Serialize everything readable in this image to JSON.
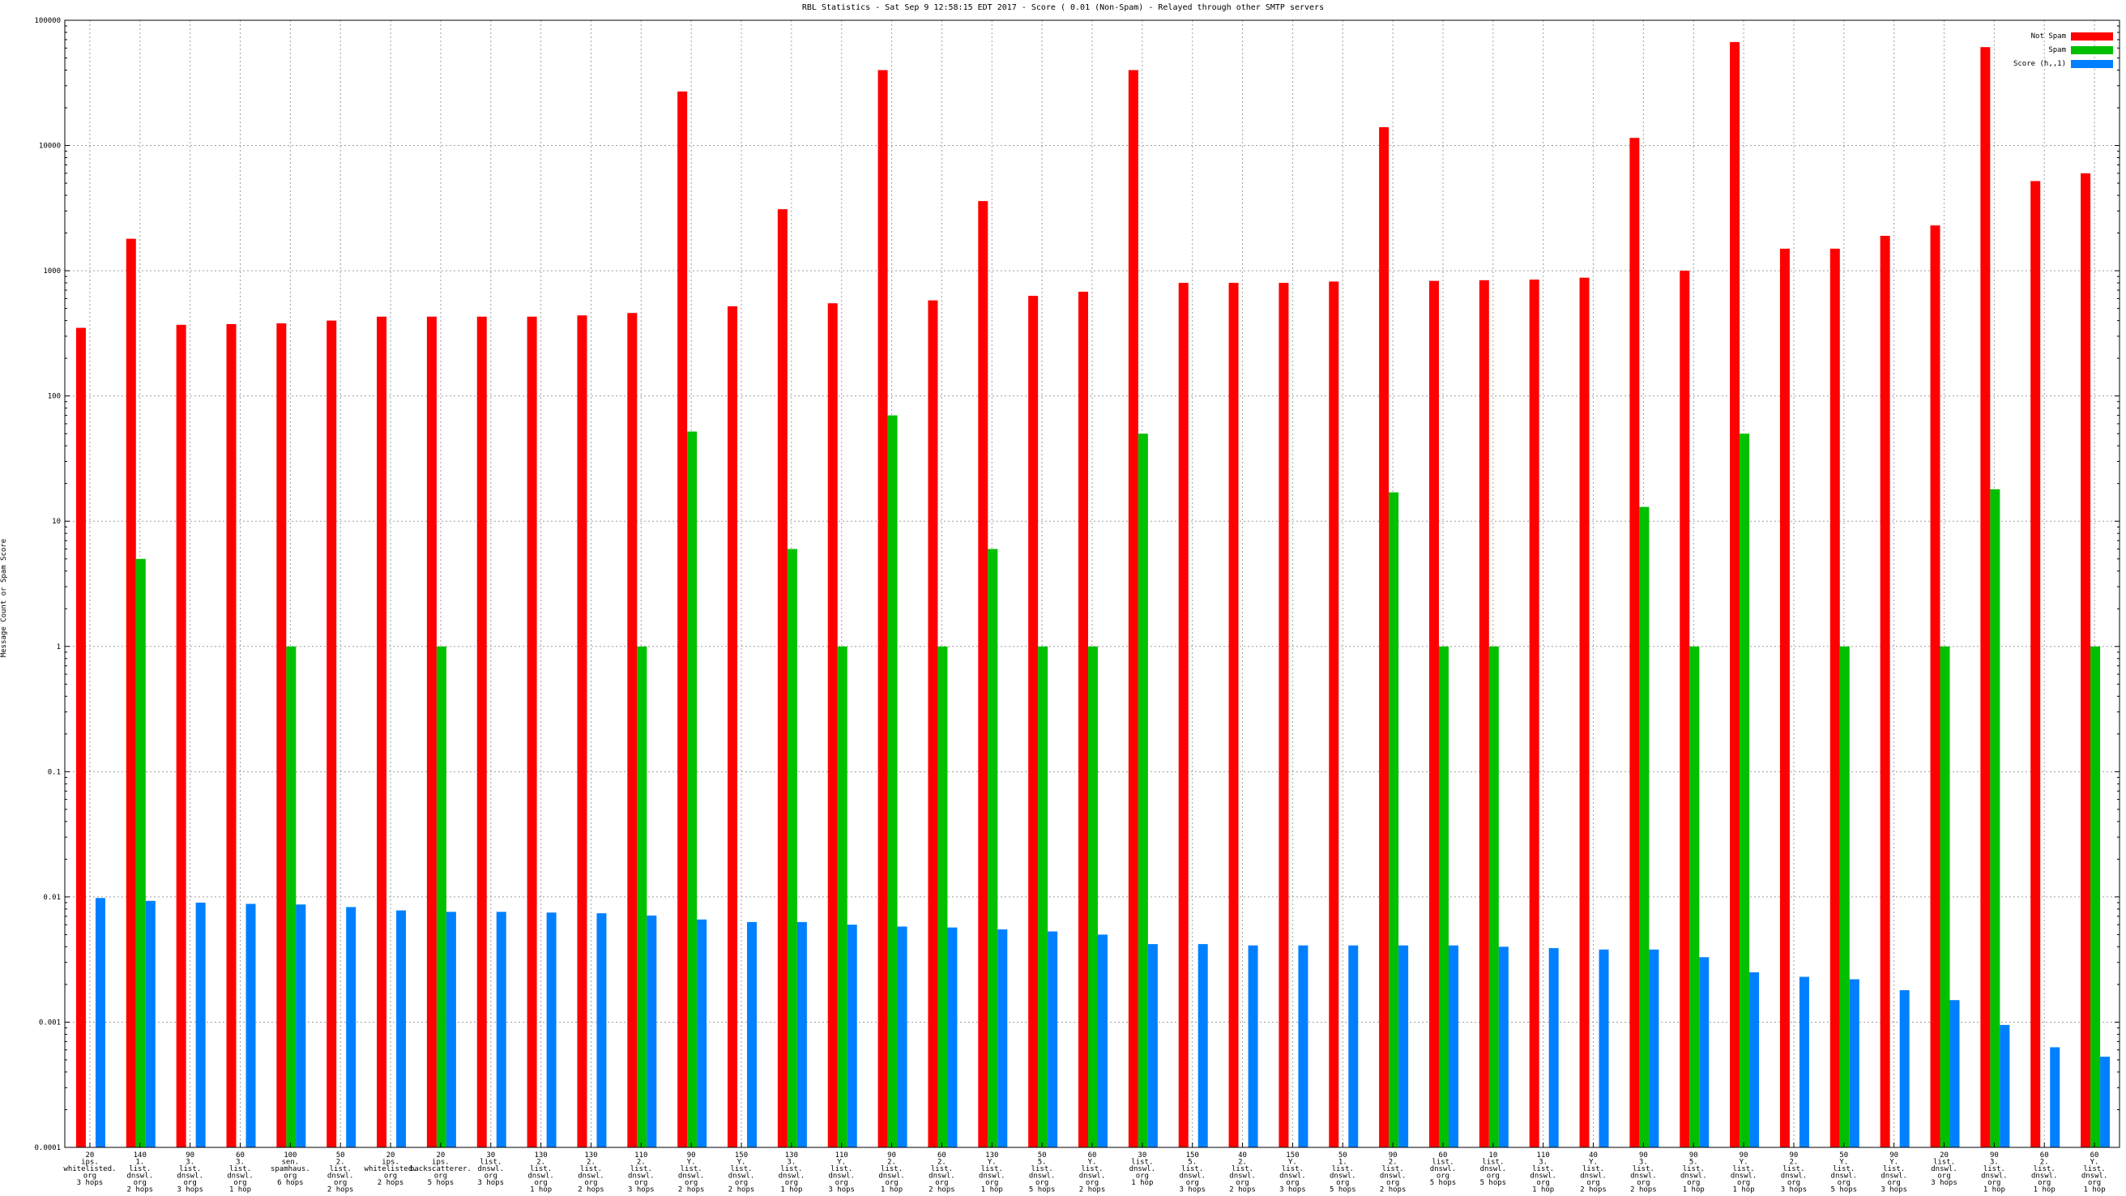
{
  "chart_data": {
    "type": "bar",
    "title": "RBL Statistics - Sat Sep  9 12:58:15 EDT 2017 - Score ( 0.01 (Non-Spam) - Relayed through other SMTP servers",
    "ylabel": "Message Count or Spam Score",
    "xlabel": "",
    "yscale": "log",
    "ylim": [
      0.0001,
      100000
    ],
    "yticks": [
      {
        "value": 100000,
        "label": "100000"
      },
      {
        "value": 10000,
        "label": "10000"
      },
      {
        "value": 1000,
        "label": "1000"
      },
      {
        "value": 100,
        "label": "100"
      },
      {
        "value": 10,
        "label": "10"
      },
      {
        "value": 1,
        "label": "1"
      },
      {
        "value": 0.1,
        "label": "0.1"
      },
      {
        "value": 0.01,
        "label": "0.01"
      },
      {
        "value": 0.001,
        "label": "0.001"
      },
      {
        "value": 0.0001,
        "label": "0.0001"
      }
    ],
    "grid": true,
    "legend_position": "top-right",
    "categories": [
      [
        "20",
        "ips.",
        "whitelisted.",
        "org",
        "3 hops"
      ],
      [
        "140",
        "1.",
        "list.",
        "dnswl.",
        "org",
        "2 hops"
      ],
      [
        "90",
        "3.",
        "list.",
        "dnswl.",
        "org",
        "3 hops"
      ],
      [
        "60",
        "3.",
        "list.",
        "dnswl.",
        "org",
        "1 hop"
      ],
      [
        "100",
        "sen.",
        "spamhaus.",
        "org",
        "6 hops"
      ],
      [
        "50",
        "2.",
        "list.",
        "dnswl.",
        "org",
        "2 hops"
      ],
      [
        "20",
        "ips.",
        "whitelisted.",
        "org",
        "2 hops"
      ],
      [
        "20",
        "ips.",
        "backscatterer.",
        "org",
        "5 hops"
      ],
      [
        "30",
        "list.",
        "dnswl.",
        "org",
        "3 hops"
      ],
      [
        "130",
        "2.",
        "list.",
        "dnswl.",
        "org",
        "1 hop"
      ],
      [
        "130",
        "2.",
        "list.",
        "dnswl.",
        "org",
        "2 hops"
      ],
      [
        "110",
        "2.",
        "list.",
        "dnswl.",
        "org",
        "3 hops"
      ],
      [
        "90",
        "Y.",
        "list.",
        "dnswl.",
        "org",
        "2 hops"
      ],
      [
        "150",
        "Y.",
        "list.",
        "dnswl.",
        "org",
        "2 hops"
      ],
      [
        "130",
        "3.",
        "list.",
        "dnswl.",
        "org",
        "1 hop"
      ],
      [
        "110",
        "Y.",
        "list.",
        "dnswl.",
        "org",
        "3 hops"
      ],
      [
        "90",
        "2.",
        "list.",
        "dnswl.",
        "org",
        "1 hop"
      ],
      [
        "60",
        "2.",
        "list.",
        "dnswl.",
        "org",
        "2 hops"
      ],
      [
        "130",
        "Y.",
        "list.",
        "dnswl.",
        "org",
        "1 hop"
      ],
      [
        "50",
        "5.",
        "list.",
        "dnswl.",
        "org",
        "5 hops"
      ],
      [
        "60",
        "Y.",
        "list.",
        "dnswl.",
        "org",
        "2 hops"
      ],
      [
        "30",
        "list.",
        "dnswl.",
        "org",
        "1 hop"
      ],
      [
        "150",
        "5.",
        "list.",
        "dnswl.",
        "org",
        "3 hops"
      ],
      [
        "40",
        "2.",
        "list.",
        "dnswl.",
        "org",
        "2 hops"
      ],
      [
        "150",
        "Y.",
        "list.",
        "dnswl.",
        "org",
        "3 hops"
      ],
      [
        "50",
        "1.",
        "list.",
        "dnswl.",
        "org",
        "5 hops"
      ],
      [
        "90",
        "2.",
        "list.",
        "dnswl.",
        "org",
        "2 hops"
      ],
      [
        "60",
        "list.",
        "dnswl.",
        "org",
        "5 hops"
      ],
      [
        "10",
        "list.",
        "dnswl.",
        "org",
        "5 hops"
      ],
      [
        "110",
        "3.",
        "list.",
        "dnswl.",
        "org",
        "1 hop"
      ],
      [
        "40",
        "Y.",
        "list.",
        "dnswl.",
        "org",
        "2 hops"
      ],
      [
        "90",
        "3.",
        "list.",
        "dnswl.",
        "org",
        "2 hops"
      ],
      [
        "90",
        "5.",
        "list.",
        "dnswl.",
        "org",
        "1 hop"
      ],
      [
        "90",
        "Y.",
        "list.",
        "dnswl.",
        "org",
        "1 hop"
      ],
      [
        "90",
        "2.",
        "list.",
        "dnswl.",
        "org",
        "3 hops"
      ],
      [
        "50",
        "Y.",
        "list.",
        "dnswl.",
        "org",
        "5 hops"
      ],
      [
        "90",
        "Y.",
        "list.",
        "dnswl.",
        "org",
        "3 hops"
      ],
      [
        "20",
        "list.",
        "dnswl.",
        "org",
        "3 hops"
      ],
      [
        "90",
        "3.",
        "list.",
        "dnswl.",
        "org",
        "1 hop"
      ],
      [
        "60",
        "2.",
        "list.",
        "dnswl.",
        "org",
        "1 hop"
      ],
      [
        "60",
        "Y.",
        "list.",
        "dnswl.",
        "org",
        "1 hop"
      ]
    ],
    "series": [
      {
        "name": "Not Spam",
        "color": "#ff0000",
        "values": [
          350,
          1800,
          370,
          375,
          380,
          400,
          430,
          430,
          430,
          430,
          440,
          460,
          27000,
          520,
          3100,
          550,
          40000,
          580,
          3600,
          630,
          680,
          40000,
          800,
          800,
          800,
          820,
          14000,
          830,
          840,
          850,
          880,
          11500,
          1000,
          67000,
          1500,
          1500,
          1900,
          2300,
          61000,
          5200,
          6000
        ]
      },
      {
        "name": "Spam",
        "color": "#00c000",
        "values": [
          null,
          5,
          null,
          null,
          1,
          null,
          null,
          1,
          null,
          null,
          null,
          1,
          52,
          null,
          6,
          1,
          70,
          1,
          6,
          1,
          1,
          50,
          null,
          null,
          null,
          null,
          17,
          1,
          1,
          null,
          null,
          13,
          1,
          50,
          null,
          1,
          null,
          1,
          18,
          null,
          1
        ]
      },
      {
        "name": "Score (h,,1)",
        "color": "#0080ff",
        "values": [
          0.0098,
          0.0093,
          0.009,
          0.0088,
          0.0087,
          0.0083,
          0.0078,
          0.0076,
          0.0076,
          0.0075,
          0.0074,
          0.0071,
          0.0066,
          0.0063,
          0.0063,
          0.006,
          0.0058,
          0.0057,
          0.0055,
          0.0053,
          0.005,
          0.0042,
          0.0042,
          0.0041,
          0.0041,
          0.0041,
          0.0041,
          0.0041,
          0.004,
          0.0039,
          0.0038,
          0.0038,
          0.0033,
          0.0025,
          0.0023,
          0.0022,
          0.0018,
          0.0015,
          0.00095,
          0.00063,
          0.00053
        ]
      }
    ]
  }
}
